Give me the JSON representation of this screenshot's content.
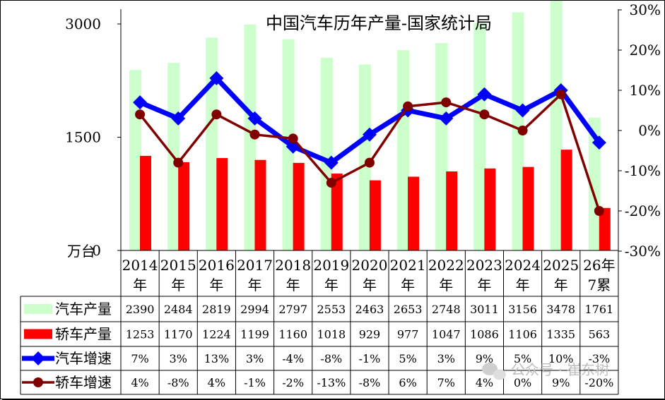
{
  "chart_data": {
    "type": "bar",
    "title": "中国汽车历年产量-国家统计局",
    "unit_label": "万台",
    "categories": [
      [
        "2014",
        "年"
      ],
      [
        "2015",
        "年"
      ],
      [
        "2016",
        "年"
      ],
      [
        "2017",
        "年"
      ],
      [
        "2018",
        "年"
      ],
      [
        "2019",
        "年"
      ],
      [
        "2020",
        "年"
      ],
      [
        "2021",
        "年"
      ],
      [
        "2022",
        "年"
      ],
      [
        "2023",
        "年"
      ],
      [
        "2024",
        "年"
      ],
      [
        "2025",
        "年"
      ],
      [
        "26年",
        "7累"
      ]
    ],
    "y_left": {
      "ticks": [
        "3000",
        "1500",
        "0"
      ],
      "range": [
        0,
        3000
      ]
    },
    "y_right": {
      "ticks": [
        "30%",
        "20%",
        "10%",
        "0%",
        "-10%",
        "-20%",
        "-30%"
      ],
      "range": [
        -30,
        30
      ]
    },
    "series": [
      {
        "name": "汽车产量",
        "type": "bar",
        "axis": "left",
        "color": "#ccffcc",
        "values": [
          2390,
          2484,
          2819,
          2994,
          2797,
          2553,
          2463,
          2653,
          2748,
          3011,
          3156,
          3478,
          1761
        ]
      },
      {
        "name": "轿车产量",
        "type": "bar",
        "axis": "left",
        "color": "#ff0000",
        "values": [
          1253,
          1170,
          1224,
          1199,
          1160,
          1018,
          929,
          977,
          1047,
          1086,
          1106,
          1335,
          563
        ]
      },
      {
        "name": "汽车增速",
        "type": "line",
        "axis": "right",
        "color": "#0000ff",
        "values": [
          7,
          3,
          13,
          3,
          -4,
          -8,
          -1,
          5,
          3,
          9,
          5,
          10,
          -3
        ]
      },
      {
        "name": "轿车增速",
        "type": "line",
        "axis": "right",
        "color": "#800000",
        "values": [
          4,
          -8,
          4,
          -1,
          -2,
          -13,
          -8,
          6,
          7,
          4,
          0,
          9,
          -20
        ]
      }
    ],
    "table": {
      "rows": [
        [
          "2390",
          "2484",
          "2819",
          "2994",
          "2797",
          "2553",
          "2463",
          "2653",
          "2748",
          "3011",
          "3156",
          "3478",
          "1761"
        ],
        [
          "1253",
          "1170",
          "1224",
          "1199",
          "1160",
          "1018",
          "929",
          "977",
          "1047",
          "1086",
          "1106",
          "1335",
          "563"
        ],
        [
          "7%",
          "3%",
          "13%",
          "3%",
          "-4%",
          "-8%",
          "-1%",
          "5%",
          "3%",
          "9%",
          "5%",
          "10%",
          "-3%"
        ],
        [
          "4%",
          "-8%",
          "4%",
          "-1%",
          "-2%",
          "-13%",
          "-8%",
          "6%",
          "7%",
          "4%",
          "0%",
          "9%",
          "-20%"
        ]
      ]
    },
    "watermark": "公众号 · 崔东树"
  }
}
